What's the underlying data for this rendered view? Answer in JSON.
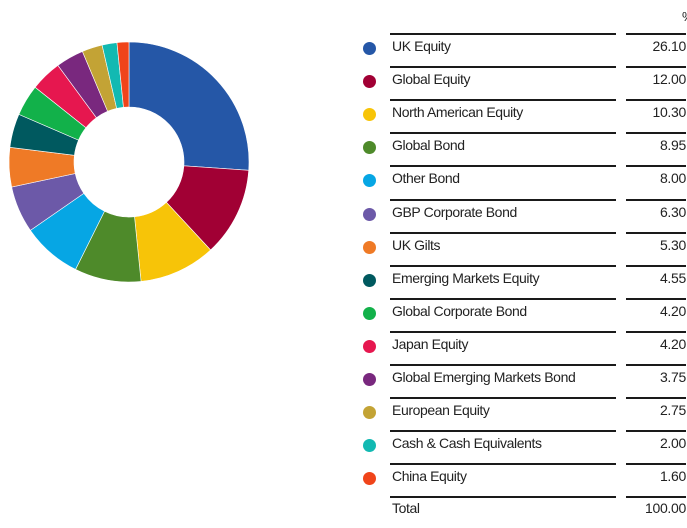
{
  "chart_data": {
    "type": "pie",
    "style": "donut",
    "value_header": "%",
    "slices": [
      {
        "label": "UK Equity",
        "value": "26.10",
        "color": "#2557a7"
      },
      {
        "label": "Global Equity",
        "value": "12.00",
        "color": "#a10034"
      },
      {
        "label": "North American Equity",
        "value": "10.30",
        "color": "#f7c408"
      },
      {
        "label": "Global Bond",
        "value": "8.95",
        "color": "#4e8a2a"
      },
      {
        "label": "Other Bond",
        "value": "8.00",
        "color": "#06a6e4"
      },
      {
        "label": "GBP Corporate Bond",
        "value": "6.30",
        "color": "#6c59a8"
      },
      {
        "label": "UK Gilts",
        "value": "5.30",
        "color": "#ef7a26"
      },
      {
        "label": "Emerging Markets Equity",
        "value": "4.55",
        "color": "#00595f"
      },
      {
        "label": "Global Corporate Bond",
        "value": "4.20",
        "color": "#12b14a"
      },
      {
        "label": "Japan Equity",
        "value": "4.20",
        "color": "#e6174f"
      },
      {
        "label": "Global Emerging Markets Bond",
        "value": "3.75",
        "color": "#79287e"
      },
      {
        "label": "European Equity",
        "value": "2.75",
        "color": "#c3a335"
      },
      {
        "label": "Cash & Cash Equivalents",
        "value": "2.00",
        "color": "#12b9b2"
      },
      {
        "label": "China Equity",
        "value": "1.60",
        "color": "#f0441a"
      }
    ],
    "total": {
      "label": "Total",
      "value": "100.00"
    }
  }
}
